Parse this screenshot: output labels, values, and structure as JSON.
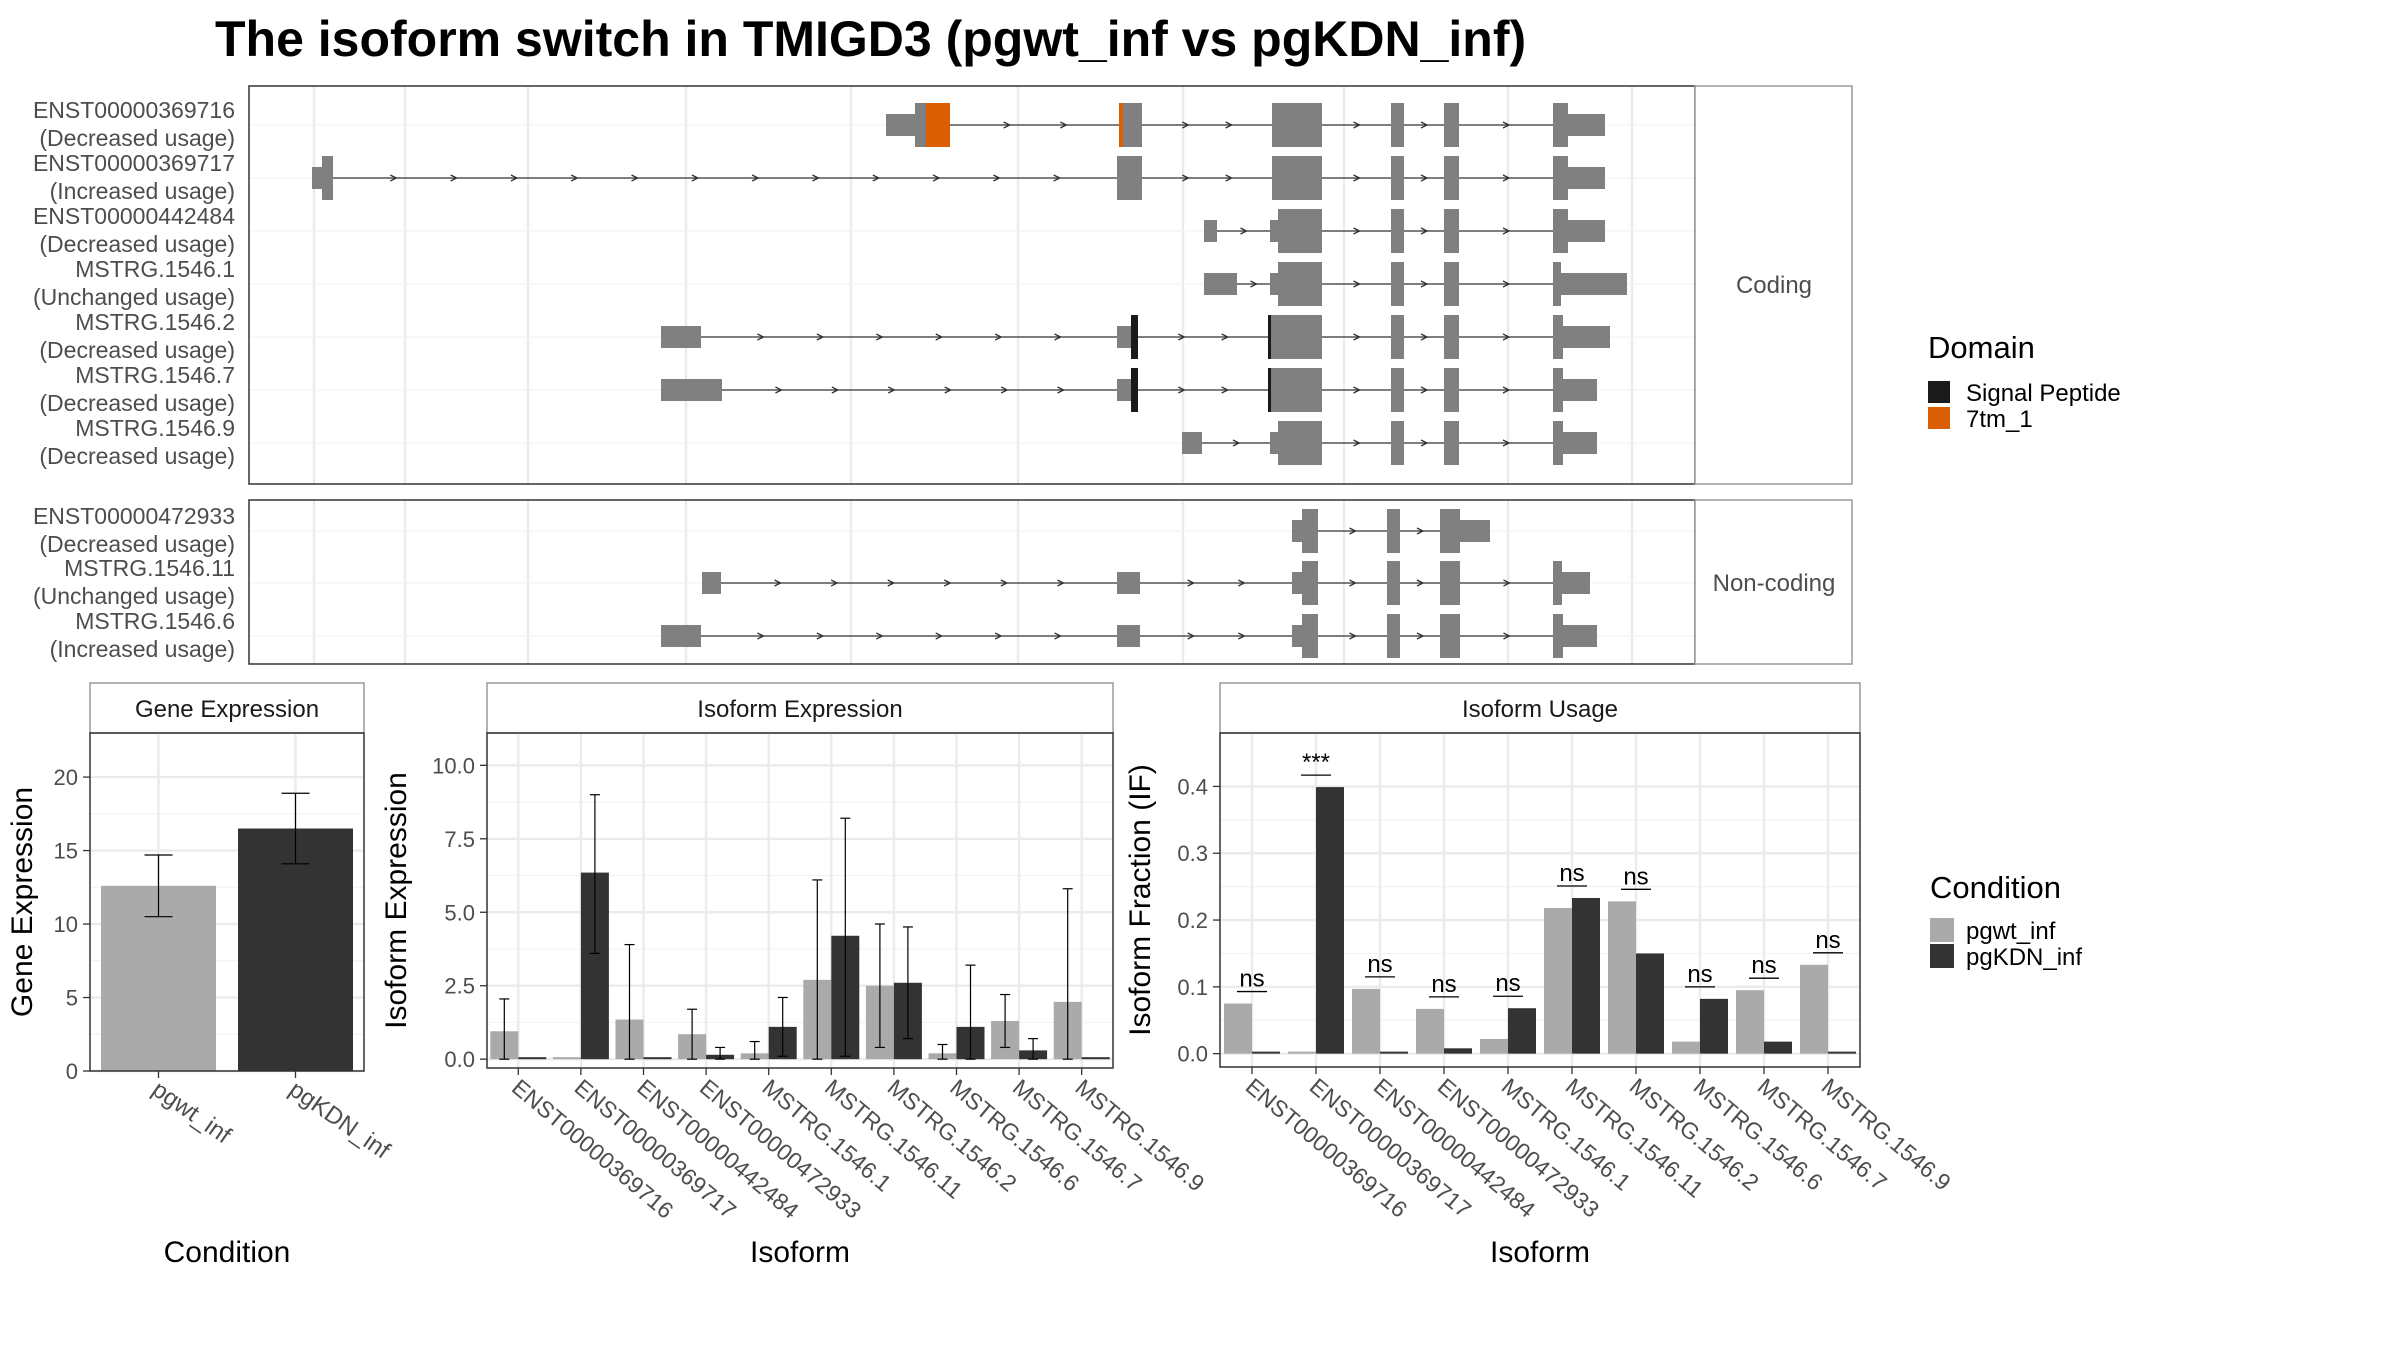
{
  "title": "The isoform switch in TMIGD3 (pgwt_inf vs pgKDN_inf)",
  "colors": {
    "exon": "#808080",
    "signal_peptide": "#1a1a1a",
    "tm7": "#d95f02",
    "pgwt_inf": "#aaaaaa",
    "pgKDN_inf": "#333333"
  },
  "structure": {
    "coding_label": "Coding",
    "noncoding_label": "Non-coding",
    "coding": [
      {
        "id": "ENST00000369716",
        "usage": "(Decreased usage)"
      },
      {
        "id": "ENST00000369717",
        "usage": "(Increased usage)"
      },
      {
        "id": "ENST00000442484",
        "usage": "(Decreased usage)"
      },
      {
        "id": "MSTRG.1546.1",
        "usage": "(Unchanged usage)"
      },
      {
        "id": "MSTRG.1546.2",
        "usage": "(Decreased usage)"
      },
      {
        "id": "MSTRG.1546.7",
        "usage": "(Decreased usage)"
      },
      {
        "id": "MSTRG.1546.9",
        "usage": "(Decreased usage)"
      }
    ],
    "noncoding": [
      {
        "id": "ENST00000472933",
        "usage": "(Decreased usage)"
      },
      {
        "id": "MSTRG.1546.11",
        "usage": "(Unchanged usage)"
      },
      {
        "id": "MSTRG.1546.6",
        "usage": "(Increased usage)"
      }
    ]
  },
  "legend": {
    "domain_title": "Domain",
    "domain_items": [
      {
        "label": "Signal Peptide",
        "color": "#1a1a1a"
      },
      {
        "label": "7tm_1",
        "color": "#d95f02"
      }
    ],
    "condition_title": "Condition",
    "condition_items": [
      {
        "label": "pgwt_inf",
        "color": "#aaaaaa"
      },
      {
        "label": "pgKDN_inf",
        "color": "#333333"
      }
    ]
  },
  "chart_data": [
    {
      "type": "bar",
      "title": "Gene Expression",
      "xlabel": "Condition",
      "ylabel": "Gene Expression",
      "ylim": [
        0,
        23
      ],
      "yticks": [
        "0",
        "5",
        "10",
        "15",
        "20"
      ],
      "categories": [
        "pgwt_inf",
        "pgKDN_inf"
      ],
      "values": [
        12.6,
        16.5
      ],
      "error_low": [
        10.5,
        14.1
      ],
      "error_high": [
        14.7,
        18.9
      ]
    },
    {
      "type": "bar",
      "title": "Isoform Expression",
      "xlabel": "Isoform",
      "ylabel": "Isoform Expression",
      "ylim": [
        -0.3,
        11.1
      ],
      "yticks": [
        "0.0",
        "2.5",
        "5.0",
        "7.5",
        "10.0"
      ],
      "categories": [
        "ENST00000369716",
        "ENST00000369717",
        "ENST00000442484",
        "ENST00000472933",
        "MSTRG.1546.1",
        "MSTRG.1546.11",
        "MSTRG.1546.2",
        "MSTRG.1546.6",
        "MSTRG.1546.7",
        "MSTRG.1546.9"
      ],
      "series": [
        {
          "name": "pgwt_inf",
          "values": [
            0.95,
            0.0,
            1.35,
            0.85,
            0.2,
            2.7,
            2.5,
            0.2,
            1.3,
            1.95
          ],
          "error_low": [
            0.0,
            0.0,
            0.0,
            0.0,
            0.0,
            0.0,
            0.4,
            0.0,
            0.4,
            0.0
          ],
          "error_high": [
            2.05,
            0.0,
            3.9,
            1.7,
            0.6,
            6.1,
            4.6,
            0.5,
            2.2,
            5.8
          ]
        },
        {
          "name": "pgKDN_inf",
          "values": [
            0.0,
            6.35,
            0.0,
            0.15,
            1.1,
            4.2,
            2.6,
            1.1,
            0.3,
            0.0
          ],
          "error_low": [
            0.0,
            3.6,
            0.0,
            0.0,
            0.1,
            0.1,
            0.7,
            0.0,
            0.0,
            0.0
          ],
          "error_high": [
            0.0,
            9.0,
            0.0,
            0.4,
            2.1,
            8.2,
            4.5,
            3.2,
            0.7,
            0.0
          ]
        }
      ]
    },
    {
      "type": "bar",
      "title": "Isoform Usage",
      "xlabel": "Isoform",
      "ylabel": "Isoform Fraction (IF)",
      "ylim": [
        -0.02,
        0.48
      ],
      "yticks": [
        "0.0",
        "0.1",
        "0.2",
        "0.3",
        "0.4"
      ],
      "categories": [
        "ENST00000369716",
        "ENST00000369717",
        "ENST00000442484",
        "ENST00000472933",
        "MSTRG.1546.1",
        "MSTRG.1546.11",
        "MSTRG.1546.2",
        "MSTRG.1546.6",
        "MSTRG.1546.7",
        "MSTRG.1546.9"
      ],
      "series": [
        {
          "name": "pgwt_inf",
          "values": [
            0.075,
            0.0,
            0.097,
            0.067,
            0.022,
            0.218,
            0.228,
            0.018,
            0.095,
            0.133
          ]
        },
        {
          "name": "pgKDN_inf",
          "values": [
            0.0,
            0.399,
            0.0,
            0.008,
            0.068,
            0.233,
            0.15,
            0.082,
            0.018,
            0.0
          ]
        }
      ],
      "significance": [
        "ns",
        "***",
        "ns",
        "ns",
        "ns",
        "ns",
        "ns",
        "ns",
        "ns",
        "ns"
      ]
    }
  ]
}
